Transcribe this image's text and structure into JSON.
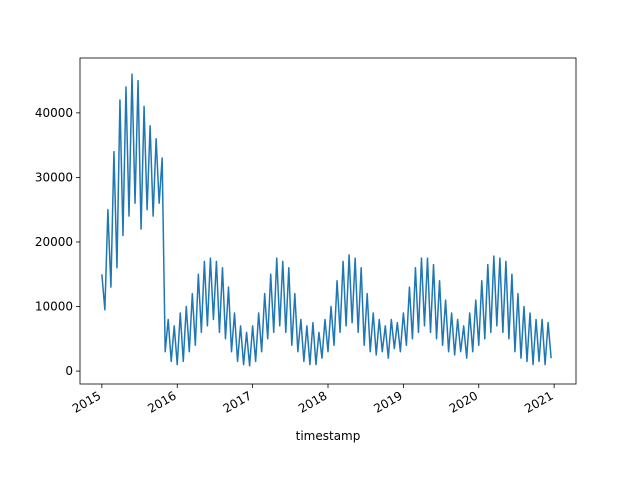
{
  "chart_data": {
    "type": "line",
    "x_label": "timestamp",
    "grid": false,
    "xlim": [
      2014.71,
      2021.29
    ],
    "ylim": [
      -2000,
      48500
    ],
    "xticks": [
      2015,
      2016,
      2017,
      2018,
      2019,
      2020,
      2021
    ],
    "yticks": [
      0,
      10000,
      20000,
      30000,
      40000
    ],
    "x": [
      2015,
      2015.04,
      2015.08,
      2015.12,
      2015.16,
      2015.2,
      2015.24,
      2015.28,
      2015.32,
      2015.36,
      2015.4,
      2015.44,
      2015.48,
      2015.52,
      2015.56,
      2015.6,
      2015.64,
      2015.68,
      2015.72,
      2015.76,
      2015.8,
      2015.84,
      2015.88,
      2015.92,
      2015.96,
      2016,
      2016.04,
      2016.08,
      2016.12,
      2016.16,
      2016.2,
      2016.24,
      2016.28,
      2016.32,
      2016.36,
      2016.4,
      2016.44,
      2016.48,
      2016.52,
      2016.56,
      2016.6,
      2016.64,
      2016.68,
      2016.72,
      2016.76,
      2016.8,
      2016.84,
      2016.88,
      2016.92,
      2016.96,
      2017,
      2017.04,
      2017.08,
      2017.12,
      2017.16,
      2017.2,
      2017.24,
      2017.28,
      2017.32,
      2017.36,
      2017.4,
      2017.44,
      2017.48,
      2017.52,
      2017.56,
      2017.6,
      2017.64,
      2017.68,
      2017.72,
      2017.76,
      2017.8,
      2017.84,
      2017.88,
      2017.92,
      2017.96,
      2018,
      2018.04,
      2018.08,
      2018.12,
      2018.16,
      2018.2,
      2018.24,
      2018.28,
      2018.32,
      2018.36,
      2018.4,
      2018.44,
      2018.48,
      2018.52,
      2018.56,
      2018.6,
      2018.64,
      2018.68,
      2018.72,
      2018.76,
      2018.8,
      2018.84,
      2018.88,
      2018.92,
      2018.96,
      2019,
      2019.04,
      2019.08,
      2019.12,
      2019.16,
      2019.2,
      2019.24,
      2019.28,
      2019.32,
      2019.36,
      2019.4,
      2019.44,
      2019.48,
      2019.52,
      2019.56,
      2019.6,
      2019.64,
      2019.68,
      2019.72,
      2019.76,
      2019.8,
      2019.84,
      2019.88,
      2019.92,
      2019.96,
      2020,
      2020.04,
      2020.08,
      2020.12,
      2020.16,
      2020.2,
      2020.24,
      2020.28,
      2020.32,
      2020.36,
      2020.4,
      2020.44,
      2020.48,
      2020.52,
      2020.56,
      2020.6,
      2020.64,
      2020.68,
      2020.72,
      2020.76,
      2020.8,
      2020.84,
      2020.88,
      2020.92,
      2020.96
    ],
    "series": [
      {
        "color": "#1f77b4",
        "values": [
          15000,
          9500,
          25000,
          13000,
          34000,
          16000,
          42000,
          21000,
          44000,
          24000,
          46000,
          26000,
          45000,
          22000,
          41000,
          25000,
          38000,
          24000,
          36000,
          26000,
          33000,
          3000,
          8000,
          1500,
          7000,
          1000,
          9000,
          1500,
          10000,
          3000,
          12000,
          4000,
          15000,
          6000,
          17000,
          7000,
          17500,
          8000,
          17000,
          6000,
          16000,
          5000,
          13000,
          3000,
          9000,
          1500,
          7000,
          1000,
          6000,
          800,
          7000,
          1500,
          9000,
          3000,
          12000,
          5000,
          15000,
          6000,
          17500,
          7000,
          17000,
          6000,
          16000,
          4000,
          12000,
          3000,
          8000,
          1500,
          7000,
          1000,
          7500,
          1000,
          6000,
          2000,
          8000,
          3000,
          10000,
          4000,
          14000,
          6000,
          17000,
          7000,
          18000,
          7500,
          17500,
          6000,
          16000,
          4000,
          12000,
          3000,
          9000,
          2500,
          8000,
          3000,
          7000,
          2000,
          8000,
          3500,
          7500,
          3000,
          9000,
          4000,
          13000,
          5000,
          16000,
          6000,
          17500,
          7000,
          17500,
          6000,
          16500,
          5000,
          14000,
          4000,
          11000,
          3000,
          9000,
          2500,
          8000,
          3000,
          7000,
          2000,
          9000,
          3000,
          11000,
          4000,
          14000,
          5000,
          16500,
          6000,
          17800,
          7000,
          17500,
          6000,
          17000,
          5000,
          15000,
          3000,
          12000,
          2000,
          10000,
          1500,
          9000,
          1000,
          8000,
          1500,
          8000,
          1000,
          7500,
          2000
        ]
      }
    ]
  }
}
